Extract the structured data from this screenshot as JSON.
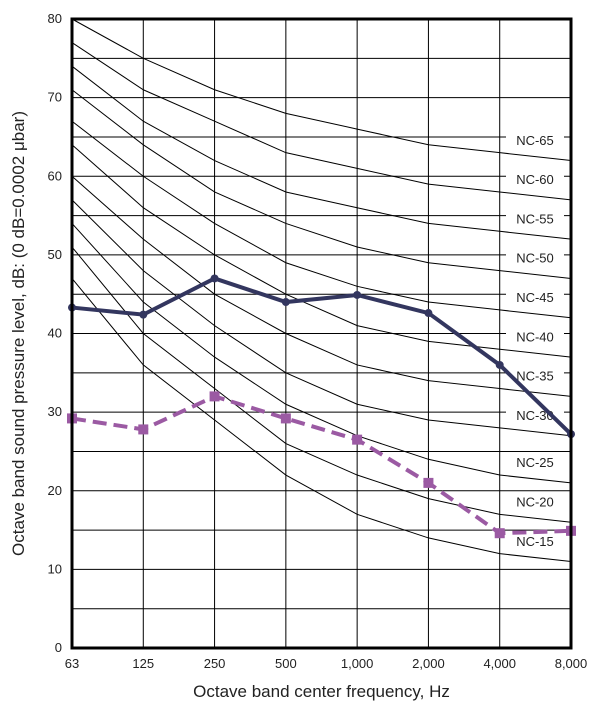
{
  "chart_data": {
    "type": "line",
    "title": "",
    "xlabel": "Octave band center frequency, Hz",
    "ylabel": "Octave band sound pressure level, dB: (0 dB=0.0002 μbar)",
    "categories": [
      "63",
      "125",
      "250",
      "500",
      "1,000",
      "2,000",
      "4,000",
      "8,000"
    ],
    "ylim": [
      0,
      80
    ],
    "yticks": [
      "0",
      "10",
      "20",
      "30",
      "40",
      "50",
      "60",
      "70",
      "80"
    ],
    "ygrid_step": 5,
    "grid": true,
    "nc_curves": [
      {
        "name": "NC-65",
        "values": [
          80,
          75,
          71,
          68,
          66,
          64,
          63,
          62
        ]
      },
      {
        "name": "NC-60",
        "values": [
          77,
          71,
          67,
          63,
          61,
          59,
          58,
          57
        ]
      },
      {
        "name": "NC-55",
        "values": [
          74,
          67,
          62,
          58,
          56,
          54,
          53,
          52
        ]
      },
      {
        "name": "NC-50",
        "values": [
          71,
          64,
          58,
          54,
          51,
          49,
          48,
          47
        ]
      },
      {
        "name": "NC-45",
        "values": [
          67,
          60,
          54,
          49,
          46,
          44,
          43,
          42
        ]
      },
      {
        "name": "NC-40",
        "values": [
          64,
          56,
          50,
          45,
          41,
          39,
          38,
          37
        ]
      },
      {
        "name": "NC-35",
        "values": [
          60,
          52,
          45,
          40,
          36,
          34,
          33,
          32
        ]
      },
      {
        "name": "NC-30",
        "values": [
          57,
          48,
          41,
          35,
          31,
          29,
          28,
          27
        ]
      },
      {
        "name": "NC-25",
        "values": [
          54,
          44,
          37,
          31,
          27,
          24,
          22,
          21
        ]
      },
      {
        "name": "NC-20",
        "values": [
          51,
          40,
          33,
          26,
          22,
          19,
          17,
          16
        ]
      },
      {
        "name": "NC-15",
        "values": [
          47,
          36,
          29,
          22,
          17,
          14,
          12,
          11
        ]
      }
    ],
    "series": [
      {
        "style": "solid",
        "color": "#33365f",
        "values": [
          43.3,
          42.4,
          47.0,
          44.0,
          44.9,
          42.6,
          36.0,
          27.2
        ]
      },
      {
        "style": "dashed",
        "color": "#9b5aa3",
        "values": [
          29.2,
          27.8,
          32.0,
          29.2,
          26.5,
          21.0,
          14.6,
          14.9
        ]
      }
    ]
  }
}
